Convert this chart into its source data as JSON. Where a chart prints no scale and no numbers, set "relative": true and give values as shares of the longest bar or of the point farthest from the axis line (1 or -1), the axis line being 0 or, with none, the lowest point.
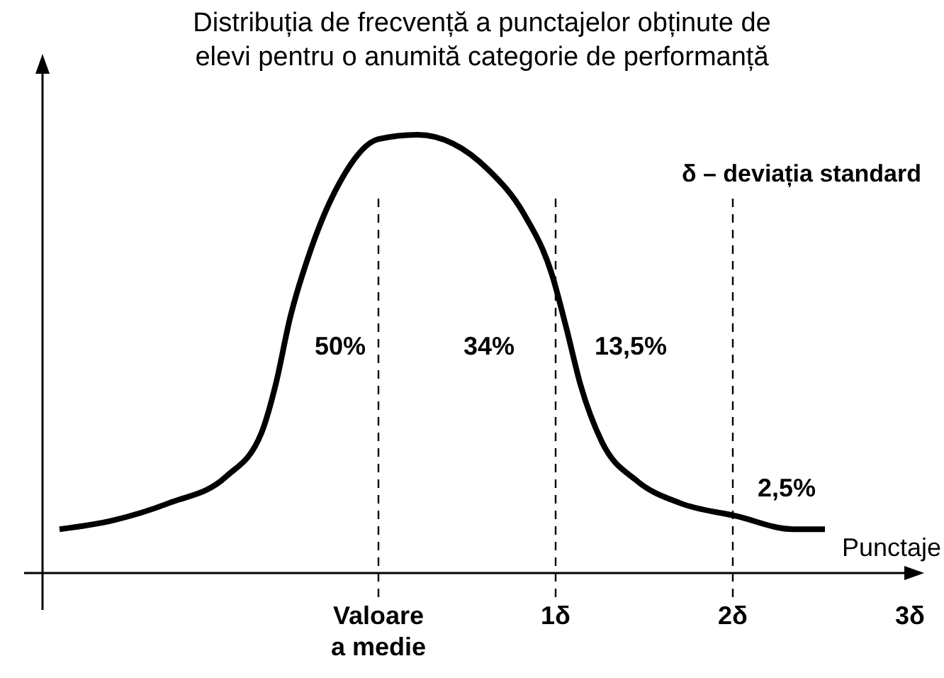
{
  "chart_data": {
    "type": "line",
    "relative": true,
    "title": "Distribuția de frecvență a punctajelor obținute de\nelevi pentru o anumită categorie de performanță",
    "xlabel": "Punctaje",
    "x": [
      -1.8,
      -1.5,
      -1.18,
      -0.86,
      -0.66,
      -0.58,
      -0.5,
      -0.38,
      -0.22,
      0,
      0.22,
      0.42,
      0.62,
      0.82,
      0.98,
      1.06,
      1.14,
      1.26,
      1.46,
      1.7,
      2.02,
      2.34,
      2.52
    ],
    "series": [
      {
        "color": "#000000",
        "values": [
          0.1,
          0.12,
          0.16,
          0.22,
          0.32,
          0.43,
          0.58,
          0.74,
          0.89,
          0.99,
          1.0,
          0.98,
          0.92,
          0.82,
          0.68,
          0.56,
          0.43,
          0.3,
          0.21,
          0.16,
          0.13,
          0.1,
          0.1
        ]
      }
    ],
    "xlim": [
      -2.0,
      3.0
    ],
    "xticks": [
      {
        "value": 0,
        "label": "Valoare\na medie"
      },
      {
        "value": 1,
        "label": "1δ"
      },
      {
        "value": 2,
        "label": "2δ"
      },
      {
        "value": 3,
        "label": "3δ"
      }
    ],
    "ref_lines": [
      {
        "axis": "x",
        "value": 0,
        "line_style": "dashed"
      },
      {
        "axis": "x",
        "value": 1,
        "line_style": "dashed"
      },
      {
        "axis": "x",
        "value": 2,
        "line_style": "dashed"
      }
    ],
    "annotations": [
      "50%",
      "34%",
      "13,5%",
      "2,5%",
      "δ – deviația standard"
    ],
    "marker": "none",
    "line_style": "solid"
  }
}
